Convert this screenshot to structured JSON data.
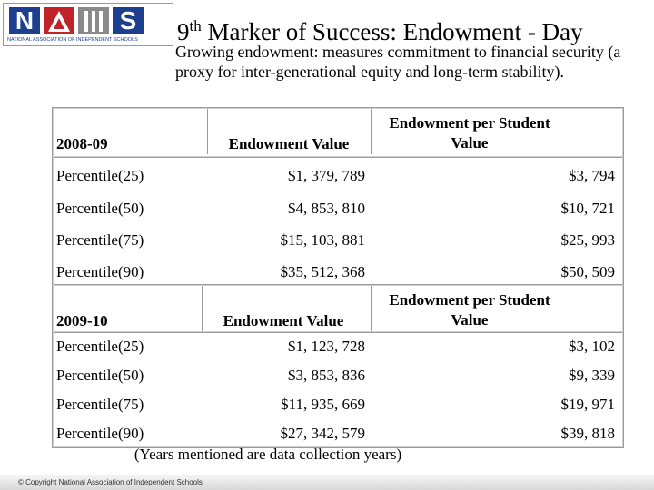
{
  "logo": {
    "letters": [
      "N",
      "S"
    ],
    "caption": "NATIONAL ASSOCIATION OF INDEPENDENT SCHOOLS"
  },
  "header": {
    "title_number": "9",
    "title_suffix": "th",
    "title_text": "Marker of Success: Endowment - Day",
    "subtitle": "Growing endowment: measures commitment to financial security (a proxy for inter-generational equity and long-term stability)."
  },
  "tables": [
    {
      "year": "2008-09",
      "columns": [
        "Endowment Value",
        "Endowment per Student Value"
      ],
      "rows": [
        [
          "Percentile(25)",
          "$1, 379, 789",
          "$3, 794"
        ],
        [
          "Percentile(50)",
          "$4, 853, 810",
          "$10, 721"
        ],
        [
          "Percentile(75)",
          "$15, 103, 881",
          "$25, 993"
        ],
        [
          "Percentile(90)",
          "$35, 512, 368",
          "$50, 509"
        ]
      ]
    },
    {
      "year": "2009-10",
      "columns": [
        "Endowment Value",
        "Endowment per Student Value"
      ],
      "rows": [
        [
          "Percentile(25)",
          "$1, 123, 728",
          "$3, 102"
        ],
        [
          "Percentile(50)",
          "$3, 853, 836",
          "$9, 339"
        ],
        [
          "Percentile(75)",
          "$11, 935, 669",
          "$19, 971"
        ],
        [
          "Percentile(90)",
          "$27, 342, 579",
          "$39, 818"
        ]
      ]
    }
  ],
  "footnote": "(Years mentioned are data collection years)",
  "footer": {
    "copyright": "© Copyright National Association of Independent Schools"
  }
}
